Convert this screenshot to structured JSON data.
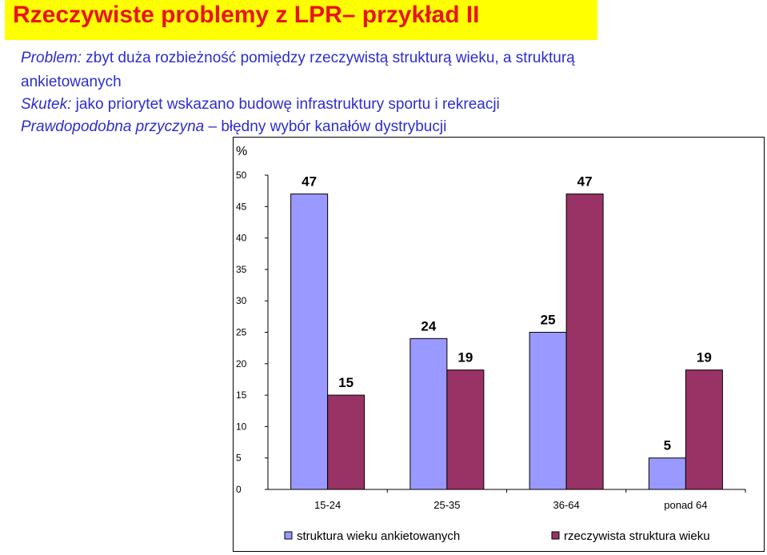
{
  "slide": {
    "title": "Rzeczywiste problemy z LPR– przykład II",
    "lines": [
      {
        "label": "Problem:",
        "text": " zbyt duża rozbieżność pomiędzy rzeczywistą strukturą wieku, a strukturą"
      },
      {
        "label": "",
        "text": "ankietowanych"
      },
      {
        "label": "Skutek:",
        "text": " jako priorytet wskazano budowę infrastruktury sportu i rekreacji"
      },
      {
        "label": "Prawdopodobna przyczyna",
        "text": " – błędny wybór kanałów dystrybucji"
      }
    ]
  },
  "colors": {
    "title": "#e8141c",
    "title_background": "#ffff00",
    "body_text": "#2d2dd2",
    "series1": "#9999ff",
    "series2": "#993366"
  },
  "chart_data": {
    "type": "bar",
    "ylabel": "%",
    "ylim": [
      0,
      50
    ],
    "yticks": [
      "0",
      "5",
      "10",
      "15",
      "20",
      "25",
      "30",
      "35",
      "40",
      "45",
      "50"
    ],
    "categories": [
      "15-24",
      "25-35",
      "36-64",
      "ponad 64"
    ],
    "series": [
      {
        "name": "struktura wieku ankietowanych",
        "values": [
          47,
          24,
          25,
          5
        ],
        "labels": [
          "47",
          "24",
          "25",
          "5"
        ]
      },
      {
        "name": "rzeczywista struktura wieku",
        "values": [
          15,
          19,
          47,
          19
        ],
        "labels": [
          "15",
          "19",
          "47",
          "19"
        ]
      }
    ],
    "grid": false,
    "legend": "bottom"
  }
}
